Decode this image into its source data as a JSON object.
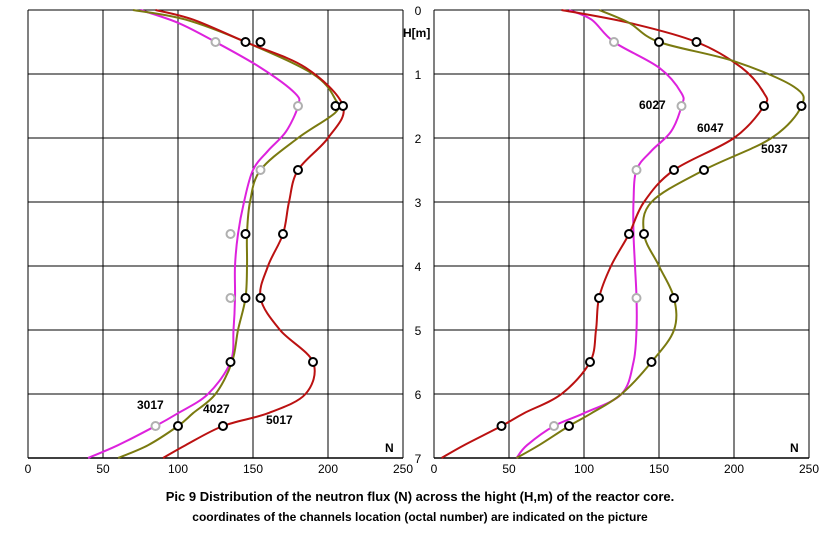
{
  "caption": {
    "line1": "Pic 9  Distribution of the neutron flux (N) across the hight (H,m) of the reactor core.",
    "line2": "coordinates of the channels location (octal number) are indicated on the picture"
  },
  "axes": {
    "y_label": "H[m]",
    "x_label": "N",
    "y_ticks": [
      "0",
      "1",
      "2",
      "3",
      "4",
      "5",
      "6",
      "7"
    ],
    "x_ticks": [
      "0",
      "50",
      "100",
      "150",
      "200",
      "250"
    ]
  },
  "chart_data": [
    {
      "type": "line",
      "xlabel": "N",
      "ylabel": "H[m]",
      "xlim": [
        0,
        250
      ],
      "ylim": [
        0,
        7
      ],
      "y_inverted": true,
      "grid": true,
      "series": [
        {
          "name": "3017",
          "color": "#dd22dd",
          "curve": [
            [
              75,
              0
            ],
            [
              100,
              0.2
            ],
            [
              125,
              0.5
            ],
            [
              155,
              0.9
            ],
            [
              178,
              1.3
            ],
            [
              180,
              1.5
            ],
            [
              172,
              1.9
            ],
            [
              160,
              2.2
            ],
            [
              150,
              2.5
            ],
            [
              144,
              3.0
            ],
            [
              140,
              3.5
            ],
            [
              138,
              4.0
            ],
            [
              138,
              4.5
            ],
            [
              137,
              5.0
            ],
            [
              135,
              5.5
            ],
            [
              120,
              6.0
            ],
            [
              100,
              6.3
            ],
            [
              85,
              6.5
            ],
            [
              60,
              6.8
            ],
            [
              40,
              7.0
            ]
          ],
          "markers": [
            [
              125,
              0.5
            ],
            [
              180,
              1.5
            ],
            [
              155,
              2.5
            ],
            [
              135,
              3.5
            ],
            [
              135,
              4.5
            ],
            [
              85,
              6.5
            ]
          ]
        },
        {
          "name": "4027",
          "color": "#7a7a10",
          "curve": [
            [
              70,
              0
            ],
            [
              105,
              0.15
            ],
            [
              145,
              0.5
            ],
            [
              190,
              1.0
            ],
            [
              205,
              1.4
            ],
            [
              205,
              1.6
            ],
            [
              180,
              2.0
            ],
            [
              155,
              2.5
            ],
            [
              148,
              3.0
            ],
            [
              146,
              3.5
            ],
            [
              146,
              4.0
            ],
            [
              145,
              4.5
            ],
            [
              140,
              5.0
            ],
            [
              136,
              5.5
            ],
            [
              125,
              6.0
            ],
            [
              110,
              6.3
            ],
            [
              100,
              6.5
            ],
            [
              80,
              6.8
            ],
            [
              60,
              7.0
            ]
          ],
          "markers": [
            [
              155,
              0.5
            ],
            [
              205,
              1.5
            ],
            [
              135,
              5.5
            ],
            [
              100,
              6.5
            ]
          ]
        },
        {
          "name": "5017",
          "color": "#bb1111",
          "curve": [
            [
              85,
              0
            ],
            [
              110,
              0.15
            ],
            [
              145,
              0.5
            ],
            [
              185,
              0.9
            ],
            [
              210,
              1.5
            ],
            [
              200,
              2.0
            ],
            [
              180,
              2.5
            ],
            [
              174,
              3.0
            ],
            [
              170,
              3.5
            ],
            [
              160,
              4.0
            ],
            [
              155,
              4.5
            ],
            [
              168,
              5.0
            ],
            [
              190,
              5.5
            ],
            [
              185,
              6.0
            ],
            [
              160,
              6.3
            ],
            [
              130,
              6.5
            ],
            [
              105,
              6.8
            ],
            [
              90,
              7.0
            ]
          ],
          "markers": [
            [
              145,
              0.5
            ],
            [
              210,
              1.5
            ],
            [
              180,
              2.5
            ],
            [
              145,
              3.5
            ],
            [
              170,
              3.5
            ],
            [
              145,
              4.5
            ],
            [
              155,
              4.5
            ],
            [
              190,
              5.5
            ],
            [
              130,
              6.5
            ]
          ]
        }
      ]
    },
    {
      "type": "line",
      "xlabel": "N",
      "ylabel": "H[m]",
      "xlim": [
        0,
        250
      ],
      "ylim": [
        0,
        7
      ],
      "y_inverted": true,
      "grid": true,
      "series": [
        {
          "name": "6027",
          "color": "#dd22dd",
          "curve": [
            [
              90,
              0
            ],
            [
              105,
              0.15
            ],
            [
              120,
              0.5
            ],
            [
              150,
              0.9
            ],
            [
              165,
              1.3
            ],
            [
              165,
              1.5
            ],
            [
              158,
              1.9
            ],
            [
              145,
              2.2
            ],
            [
              135,
              2.5
            ],
            [
              133,
              3.0
            ],
            [
              133,
              3.5
            ],
            [
              134,
              4.0
            ],
            [
              135,
              4.5
            ],
            [
              135,
              5.0
            ],
            [
              133,
              5.5
            ],
            [
              125,
              6.0
            ],
            [
              100,
              6.3
            ],
            [
              80,
              6.5
            ],
            [
              62,
              6.8
            ],
            [
              55,
              7.0
            ]
          ],
          "markers": [
            [
              120,
              0.5
            ],
            [
              165,
              1.5
            ],
            [
              135,
              2.5
            ],
            [
              135,
              4.5
            ],
            [
              80,
              6.5
            ]
          ]
        },
        {
          "name": "6047",
          "color": "#bb1111",
          "curve": [
            [
              85,
              0
            ],
            [
              130,
              0.2
            ],
            [
              175,
              0.5
            ],
            [
              205,
              0.9
            ],
            [
              220,
              1.3
            ],
            [
              220,
              1.5
            ],
            [
              200,
              2.0
            ],
            [
              160,
              2.5
            ],
            [
              140,
              3.0
            ],
            [
              130,
              3.5
            ],
            [
              118,
              4.0
            ],
            [
              110,
              4.5
            ],
            [
              108,
              5.0
            ],
            [
              104,
              5.5
            ],
            [
              85,
              6.0
            ],
            [
              60,
              6.3
            ],
            [
              45,
              6.5
            ],
            [
              20,
              6.8
            ],
            [
              5,
              7.0
            ]
          ],
          "markers": [
            [
              175,
              0.5
            ],
            [
              220,
              1.5
            ],
            [
              160,
              2.5
            ],
            [
              130,
              3.5
            ],
            [
              110,
              4.5
            ],
            [
              104,
              5.5
            ],
            [
              45,
              6.5
            ]
          ]
        },
        {
          "name": "5037",
          "color": "#7a7a10",
          "curve": [
            [
              110,
              0
            ],
            [
              130,
              0.2
            ],
            [
              150,
              0.5
            ],
            [
              200,
              0.8
            ],
            [
              240,
              1.2
            ],
            [
              245,
              1.5
            ],
            [
              225,
              2.0
            ],
            [
              180,
              2.5
            ],
            [
              145,
              3.0
            ],
            [
              140,
              3.5
            ],
            [
              150,
              4.0
            ],
            [
              160,
              4.5
            ],
            [
              160,
              5.0
            ],
            [
              145,
              5.5
            ],
            [
              125,
              6.0
            ],
            [
              105,
              6.3
            ],
            [
              90,
              6.5
            ],
            [
              70,
              6.8
            ],
            [
              55,
              7.0
            ]
          ],
          "markers": [
            [
              150,
              0.5
            ],
            [
              245,
              1.5
            ],
            [
              180,
              2.5
            ],
            [
              140,
              3.5
            ],
            [
              160,
              4.5
            ],
            [
              145,
              5.5
            ],
            [
              90,
              6.5
            ]
          ]
        }
      ]
    }
  ]
}
